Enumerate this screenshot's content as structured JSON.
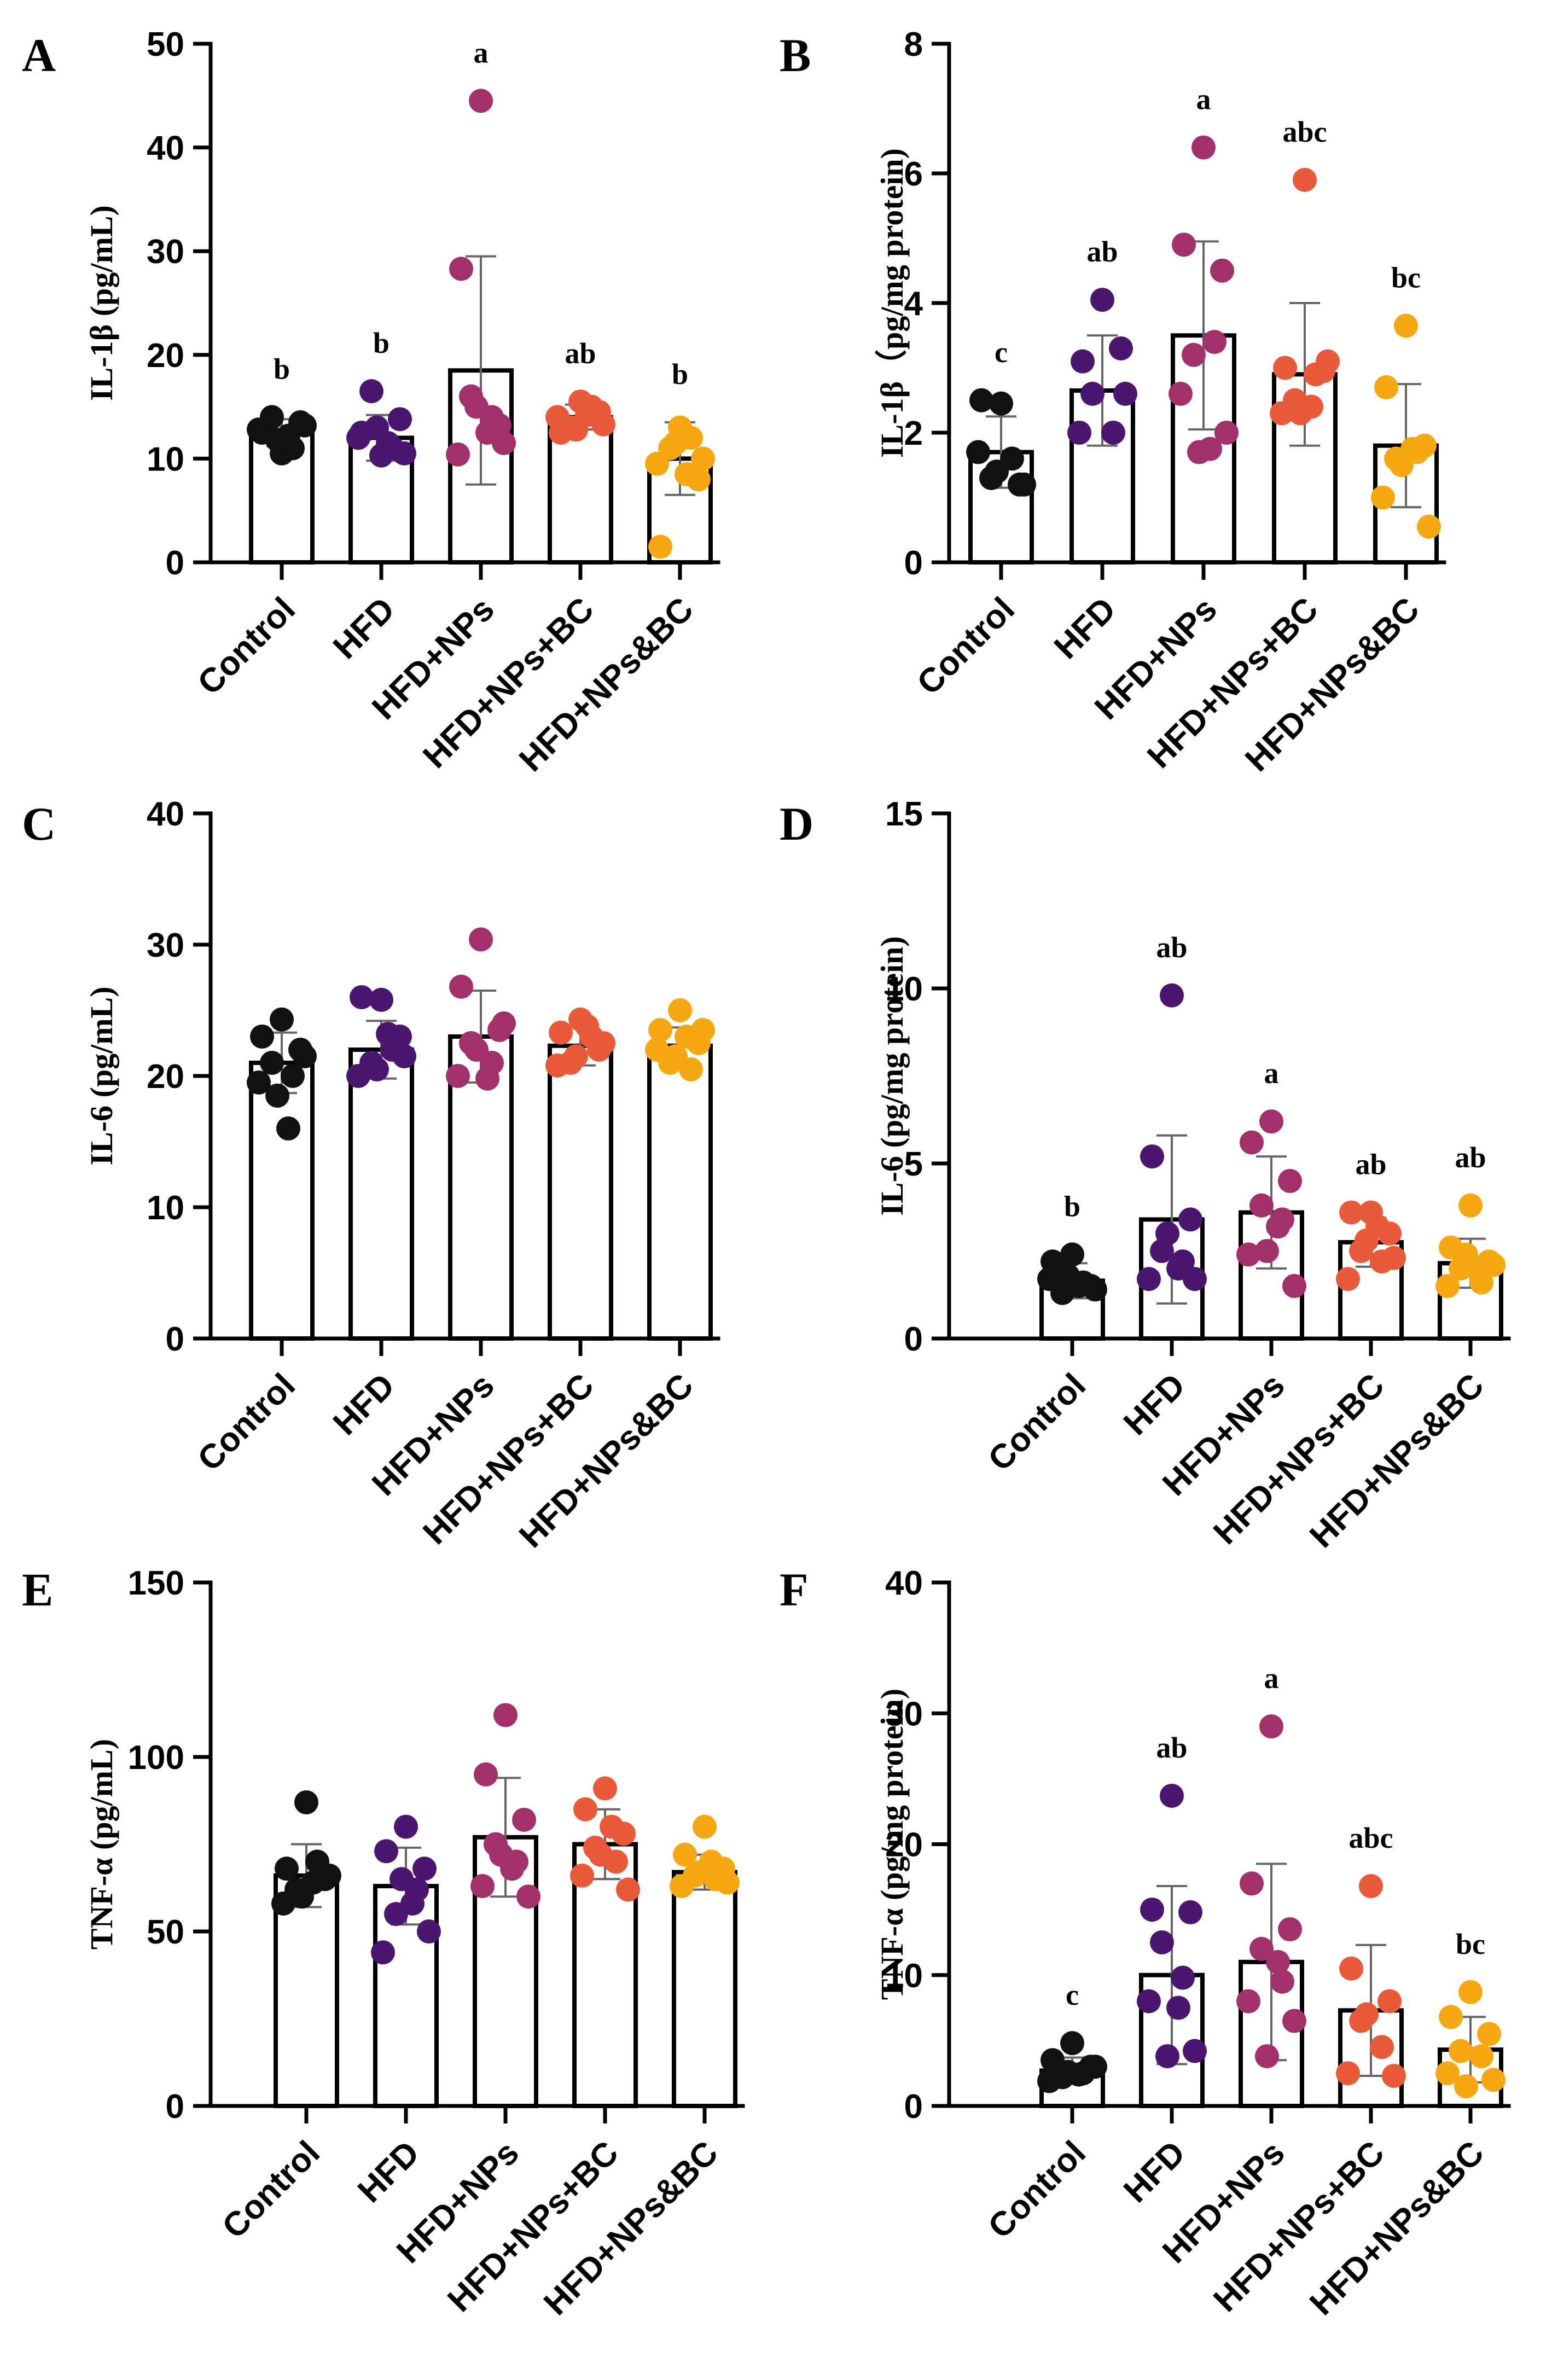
{
  "colors": [
    "#111111",
    "#4a1670",
    "#a2306a",
    "#e85a3a",
    "#f5a811"
  ],
  "chart_data": [
    {
      "panel": "A",
      "type": "bar",
      "ylabel": "IL-1β (pg/mL)",
      "ylim": [
        0,
        50
      ],
      "yticks": [
        0,
        10,
        20,
        30,
        40,
        50
      ],
      "categories": [
        "Control",
        "HFD",
        "HFD+NPs",
        "HFD+NPs+BC",
        "HFD+NPs&BC"
      ],
      "means": [
        12.5,
        12.0,
        18.5,
        14.0,
        10.0
      ],
      "sd": [
        1.3,
        2.2,
        11.0,
        1.2,
        3.5
      ],
      "letters": [
        "b",
        "b",
        "a",
        "ab",
        "b"
      ],
      "points": [
        [
          10.5,
          12.5,
          13.5,
          14,
          11,
          12.8,
          13.2,
          11.8,
          12.2
        ],
        [
          10.3,
          12.5,
          13.8,
          16.5,
          11,
          12,
          10.5,
          13,
          11.5
        ],
        [
          44.5,
          28.3,
          13.2,
          16,
          14,
          10.4,
          11.5,
          15,
          12.5
        ],
        [
          15.5,
          12.5,
          14.5,
          13,
          15,
          14,
          13.3,
          12.8,
          14.2
        ],
        [
          13,
          1.5,
          8,
          11,
          12,
          9.5,
          10,
          11.5,
          8.5
        ]
      ]
    },
    {
      "panel": "B",
      "type": "bar",
      "ylabel": "IL-1β（pg/mg protein)",
      "ylim": [
        0,
        8
      ],
      "yticks": [
        0,
        2,
        4,
        6,
        8
      ],
      "categories": [
        "Control",
        "HFD",
        "HFD+NPs",
        "HFD+NPs+BC",
        "HFD+NPs&BC"
      ],
      "means": [
        1.7,
        2.65,
        3.5,
        2.9,
        1.8
      ],
      "sd": [
        0.55,
        0.85,
        1.45,
        1.1,
        0.95
      ],
      "letters": [
        "c",
        "ab",
        "a",
        "abc",
        "bc"
      ],
      "points": [
        [
          2.45,
          2.5,
          1.2,
          1.3,
          1.6,
          1.7,
          1.2,
          1.4
        ],
        [
          4.05,
          3.1,
          3.3,
          2.6,
          2.0,
          2.0,
          2.6
        ],
        [
          6.4,
          4.9,
          4.5,
          3.2,
          3.4,
          2.6,
          2.0,
          1.7,
          1.75
        ],
        [
          5.9,
          3.0,
          2.95,
          2.5,
          2.9,
          2.3,
          3.1,
          2.3,
          2.4
        ],
        [
          3.65,
          2.7,
          1.8,
          1.6,
          1.7,
          1.0,
          0.55,
          1.5,
          1.75
        ]
      ]
    },
    {
      "panel": "C",
      "type": "bar",
      "ylabel": "IL-6 (pg/mL)",
      "ylim": [
        0,
        40
      ],
      "yticks": [
        0,
        10,
        20,
        30,
        40
      ],
      "categories": [
        "Control",
        "HFD",
        "HFD+NPs",
        "HFD+NPs+BC",
        "HFD+NPs&BC"
      ],
      "means": [
        21.0,
        22.0,
        23.0,
        22.3,
        22.3
      ],
      "sd": [
        2.3,
        2.2,
        3.5,
        1.5,
        1.4
      ],
      "letters": [
        "",
        "",
        "",
        "",
        ""
      ],
      "points": [
        [
          24.3,
          23,
          22,
          21,
          20,
          19.5,
          21.5,
          18.5,
          16
        ],
        [
          25.8,
          26,
          23,
          21,
          22,
          20,
          21.5,
          20.5,
          23.2
        ],
        [
          30.4,
          26.8,
          23.5,
          22.5,
          21,
          20,
          24,
          22,
          19.8
        ],
        [
          24.3,
          23.3,
          22,
          21,
          23,
          20.8,
          22.5,
          21.5,
          23.8
        ],
        [
          25,
          23.5,
          22.5,
          21,
          20.5,
          22,
          23.5,
          21.5,
          23
        ]
      ]
    },
    {
      "panel": "D",
      "type": "bar",
      "ylabel": "IL-6 (pg/mg protein)",
      "ylim": [
        0,
        15
      ],
      "yticks": [
        0,
        5,
        10,
        15
      ],
      "categories": [
        "Control",
        "HFD",
        "HFD+NPs",
        "HFD+NPs+BC",
        "HFD+NPs&BC"
      ],
      "means": [
        1.65,
        3.4,
        3.6,
        2.75,
        2.15
      ],
      "sd": [
        0.5,
        2.4,
        1.6,
        0.7,
        0.7
      ],
      "letters": [
        "b",
        "ab",
        "a",
        "ab",
        "ab"
      ],
      "points": [
        [
          2.4,
          2.2,
          1.5,
          1.3,
          1.6,
          1.7,
          1.4,
          1.8,
          1.5
        ],
        [
          9.8,
          5.2,
          3.4,
          2.5,
          2.2,
          1.7,
          1.7,
          3.0,
          2.0
        ],
        [
          6.2,
          5.6,
          4.5,
          3.8,
          3.4,
          2.4,
          1.5,
          2.5,
          3.2
        ],
        [
          3.6,
          3.6,
          3.0,
          2.5,
          2.2,
          1.7,
          2.3,
          2.8,
          3.2
        ],
        [
          3.8,
          2.6,
          2.2,
          2.0,
          1.6,
          1.5,
          2.1,
          2.4,
          2.0
        ]
      ]
    },
    {
      "panel": "E",
      "type": "bar",
      "ylabel": "TNF-α (pg/mL)",
      "ylim": [
        0,
        150
      ],
      "yticks": [
        0,
        50,
        100,
        150
      ],
      "categories": [
        "Control",
        "HFD",
        "HFD+NPs",
        "HFD+NPs+BC",
        "HFD+NPs&BC"
      ],
      "means": [
        66,
        63,
        77,
        75,
        67
      ],
      "sd": [
        9,
        11,
        17,
        10,
        5
      ],
      "letters": [
        "",
        "",
        "",
        "",
        ""
      ],
      "points": [
        [
          87,
          68,
          65,
          62,
          70,
          58,
          66,
          60,
          64
        ],
        [
          80,
          73,
          68,
          55,
          62,
          44,
          50,
          65,
          58
        ],
        [
          112,
          95,
          82,
          75,
          70,
          63,
          60,
          72,
          68
        ],
        [
          91,
          85,
          78,
          74,
          70,
          66,
          62,
          72,
          80
        ],
        [
          80,
          72,
          68,
          66,
          65,
          63,
          64,
          67,
          70
        ]
      ]
    },
    {
      "panel": "F",
      "type": "bar",
      "ylabel": "TNF-α (pg/mg protein)",
      "ylim": [
        0,
        40
      ],
      "yticks": [
        0,
        10,
        20,
        30,
        40
      ],
      "categories": [
        "Control",
        "HFD",
        "HFD+NPs",
        "HFD+NPs+BC",
        "HFD+NPs&BC"
      ],
      "means": [
        2.7,
        10.0,
        11.0,
        7.3,
        4.3
      ],
      "sd": [
        1.0,
        6.8,
        7.5,
        5.0,
        2.5
      ],
      "letters": [
        "c",
        "ab",
        "a",
        "abc",
        "bc"
      ],
      "points": [
        [
          4.8,
          3.5,
          3.0,
          2.2,
          2.5,
          1.9,
          3.0,
          2.6,
          2.4
        ],
        [
          23.7,
          15,
          14.8,
          12.5,
          9.8,
          8.0,
          4.2,
          3.8,
          7.5
        ],
        [
          29,
          17,
          13.5,
          12,
          9.5,
          8.0,
          6.5,
          3.8,
          11
        ],
        [
          16.8,
          10.5,
          8.0,
          6.5,
          4.5,
          2.5,
          2.3,
          7.0
        ],
        [
          8.7,
          6.8,
          5.5,
          4.2,
          3.8,
          2.5,
          2.0,
          1.5
        ]
      ]
    }
  ]
}
